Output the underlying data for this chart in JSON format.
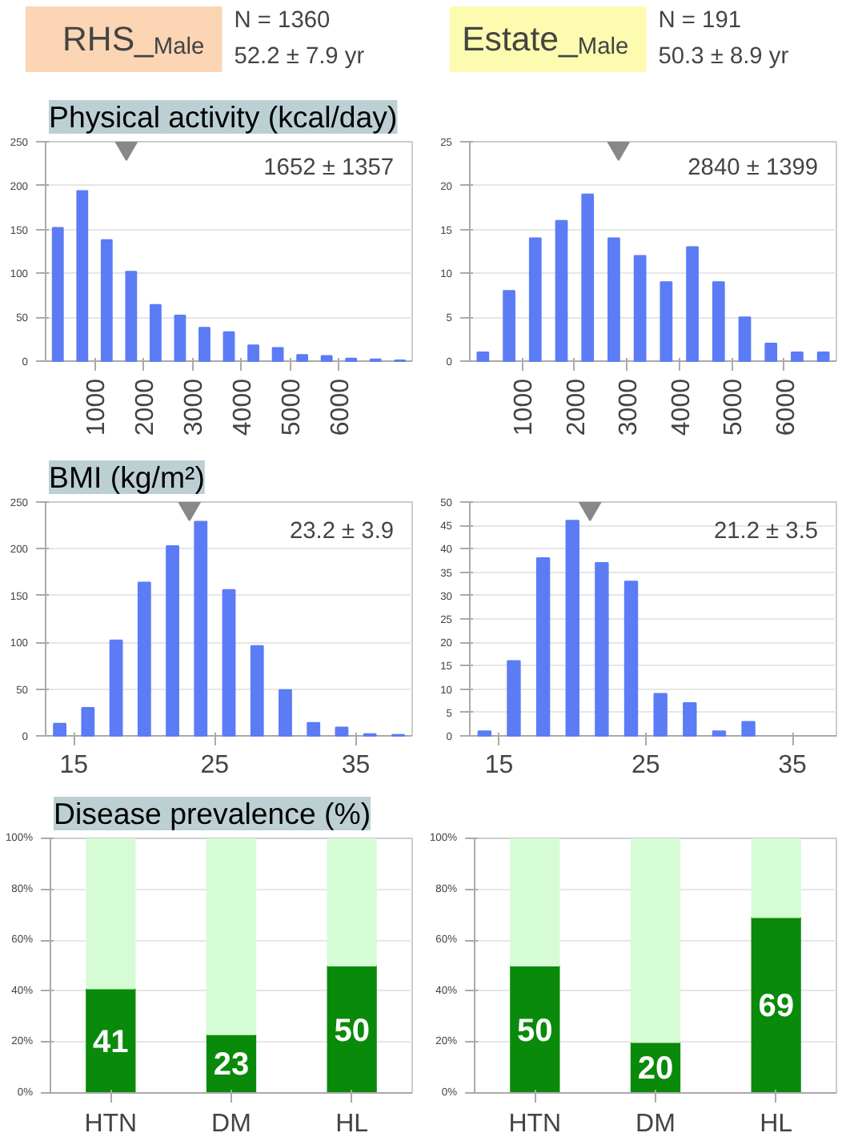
{
  "chart_data": [
    {
      "type": "other",
      "color": "#fcd5b4",
      "annotations": [
        "RHS_$_{Male}$",
        "N = 1360",
        "52.2 ± 7.9 yr"
      ]
    },
    {
      "type": "other",
      "color": "#fdfbb0",
      "annotations": [
        "Estate_$_{Male}$",
        "N = 191",
        "50.3 ± 8.9 yr"
      ]
    },
    {
      "type": "histogram",
      "title": "Physical activity (kcal/day)",
      "bins": [
        0,
        500,
        1000,
        1500,
        2000,
        2500,
        3000,
        3500,
        4000,
        4500,
        5000,
        5500,
        6000,
        6500,
        7000,
        7500
      ],
      "values": [
        152,
        194,
        138,
        102,
        64,
        52,
        38,
        33,
        18,
        15,
        7,
        6,
        3,
        2,
        1
      ],
      "color": "#5b7cf5",
      "xlim": [
        0,
        7500
      ],
      "xticks": [
        1000,
        2000,
        3000,
        4000,
        5000,
        6000
      ],
      "ylim": [
        0,
        250
      ],
      "yticks": [
        0,
        50,
        100,
        150,
        200,
        250
      ],
      "grid": "y",
      "marker": "triangle",
      "annotations": [
        "1652 ± 1357"
      ],
      "series": [
        {
          "type": "scatter",
          "x": [
            1652
          ],
          "values": [
            250
          ],
          "color": "#888888"
        }
      ]
    },
    {
      "type": "histogram",
      "bins": [
        0,
        500,
        1000,
        1500,
        2000,
        2500,
        3000,
        3500,
        4000,
        4500,
        5000,
        5500,
        6000,
        6500,
        7000
      ],
      "values": [
        1,
        8,
        14,
        16,
        19,
        14,
        12,
        9,
        13,
        9,
        5,
        2,
        1,
        1
      ],
      "color": "#5b7cf5",
      "xlim": [
        0,
        7000
      ],
      "xticks": [
        1000,
        2000,
        3000,
        4000,
        5000,
        6000
      ],
      "ylim": [
        0,
        25
      ],
      "yticks": [
        0,
        5,
        10,
        15,
        20,
        25
      ],
      "grid": "y",
      "marker": "triangle",
      "annotations": [
        "2840 ± 1399"
      ],
      "series": [
        {
          "type": "scatter",
          "x": [
            2840
          ],
          "values": [
            25
          ],
          "color": "#888888"
        }
      ]
    },
    {
      "type": "histogram",
      "title": "BMI (kg/m²)",
      "bins": [
        13,
        15,
        17,
        19,
        21,
        23,
        25,
        27,
        29,
        31,
        33,
        35,
        37,
        39
      ],
      "values": [
        13,
        30,
        102,
        164,
        203,
        229,
        156,
        96,
        49,
        14,
        9,
        2,
        1
      ],
      "color": "#5b7cf5",
      "xlim": [
        13,
        39
      ],
      "xticks": [
        15,
        25,
        35
      ],
      "ylim": [
        0,
        250
      ],
      "yticks": [
        0,
        50,
        100,
        150,
        200,
        250
      ],
      "grid": "y",
      "marker": "triangle",
      "annotations": [
        "23.2 ± 3.9"
      ],
      "series": [
        {
          "type": "scatter",
          "x": [
            23.2
          ],
          "values": [
            250
          ],
          "color": "#888888"
        }
      ]
    },
    {
      "type": "histogram",
      "bins": [
        13,
        15,
        17,
        19,
        21,
        23,
        25,
        27,
        29,
        31,
        33
      ],
      "values": [
        1,
        16,
        38,
        46,
        37,
        33,
        9,
        7,
        1,
        3
      ],
      "color": "#5b7cf5",
      "xlim": [
        13,
        38
      ],
      "xticks": [
        15,
        25,
        35
      ],
      "ylim": [
        0,
        50
      ],
      "yticks": [
        0,
        5,
        10,
        15,
        20,
        25,
        30,
        35,
        40,
        45,
        50
      ],
      "grid": "y",
      "marker": "triangle",
      "annotations": [
        "21.2 ± 3.5"
      ],
      "series": [
        {
          "type": "scatter",
          "x": [
            21.2
          ],
          "values": [
            50
          ],
          "color": "#888888"
        }
      ]
    },
    {
      "type": "bar",
      "title": "Disease prevalence (%)",
      "categories": [
        "HTN",
        "DM",
        "HL"
      ],
      "stacked": true,
      "ylim": [
        0,
        100
      ],
      "yticks": [
        {
          "value": 0,
          "label": "0%"
        },
        {
          "value": 20,
          "label": "20%"
        },
        {
          "value": 40,
          "label": "40%"
        },
        {
          "value": 60,
          "label": "60%"
        },
        {
          "value": 80,
          "label": "80%"
        },
        {
          "value": 100,
          "label": "100%"
        }
      ],
      "grid": "y",
      "series": [
        {
          "color": "#0a8a0a",
          "values": [
            41,
            23,
            50
          ],
          "value_labels": [
            "41",
            "23",
            "50"
          ]
        },
        {
          "color": "#d6fcd6",
          "values": [
            59,
            77,
            50
          ]
        }
      ]
    },
    {
      "type": "bar",
      "categories": [
        "HTN",
        "DM",
        "HL"
      ],
      "stacked": true,
      "ylim": [
        0,
        100
      ],
      "yticks": [
        {
          "value": 0,
          "label": "0%"
        },
        {
          "value": 20,
          "label": "20%"
        },
        {
          "value": 40,
          "label": "40%"
        },
        {
          "value": 60,
          "label": "60%"
        },
        {
          "value": 80,
          "label": "80%"
        },
        {
          "value": 100,
          "label": "100%"
        }
      ],
      "grid": "y",
      "series": [
        {
          "color": "#0a8a0a",
          "values": [
            50,
            20,
            69
          ],
          "value_labels": [
            "50",
            "20",
            "69"
          ]
        },
        {
          "color": "#d6fcd6",
          "values": [
            50,
            80,
            31
          ]
        }
      ]
    }
  ]
}
